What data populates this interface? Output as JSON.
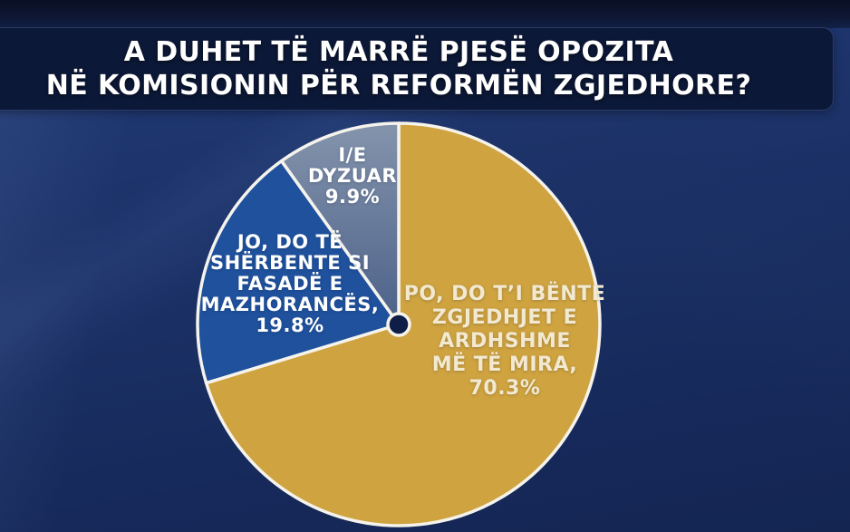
{
  "header": {
    "title_line1": "A DUHET TË MARRË PJESË OPOZITA",
    "title_line2": "NË KOMISIONIN PËR REFORMËN ZGJEDHORE?",
    "panel_color": "#0c1837",
    "text_color": "#ffffff"
  },
  "page": {
    "background_color": "#1c3268",
    "top_strip_color": "#0d1733"
  },
  "chart_data": {
    "type": "pie",
    "title": "A DUHET TË MARRË PJESË OPOZITA NË KOMISIONIN PËR REFORMËN ZGJEDHORE?",
    "direction": "clockwise",
    "start_angle": "12-oclock",
    "legend_position": "labels-inside-slices",
    "stroke_color": "#f5f3ec",
    "center_dot_color": "#0e1e46",
    "slices": [
      {
        "id": "po",
        "name": "PO, DO T’I BËNTE ZGJEDHJET E ARDHSHME MË TË MIRA",
        "value": 70.3,
        "color": "#cfa33f",
        "label_text": "PO, DO T’I BËNTE\nZGJEDHJET E\nARDHSHME\nMË TË MIRA,\n70.3%",
        "label_color": "#f2e9d0"
      },
      {
        "id": "jo",
        "name": "JO, DO TË SHËRBENTE SI FASADË E MAZHORANCËS",
        "value": 19.8,
        "color": "#1f519d",
        "label_text": "JO, DO TË\nSHËRBENTE SI\nFASADË E\nMAZHORANCËS,\n19.8%",
        "label_color": "#ffffff"
      },
      {
        "id": "dyzuar",
        "name": "I/E DYZUAR",
        "value": 9.9,
        "color": "#74879f",
        "gradient": [
          "#8494ac",
          "#4c6189"
        ],
        "label_text": "I/E\nDYZUAR\n9.9%",
        "label_color": "#ffffff"
      }
    ]
  }
}
